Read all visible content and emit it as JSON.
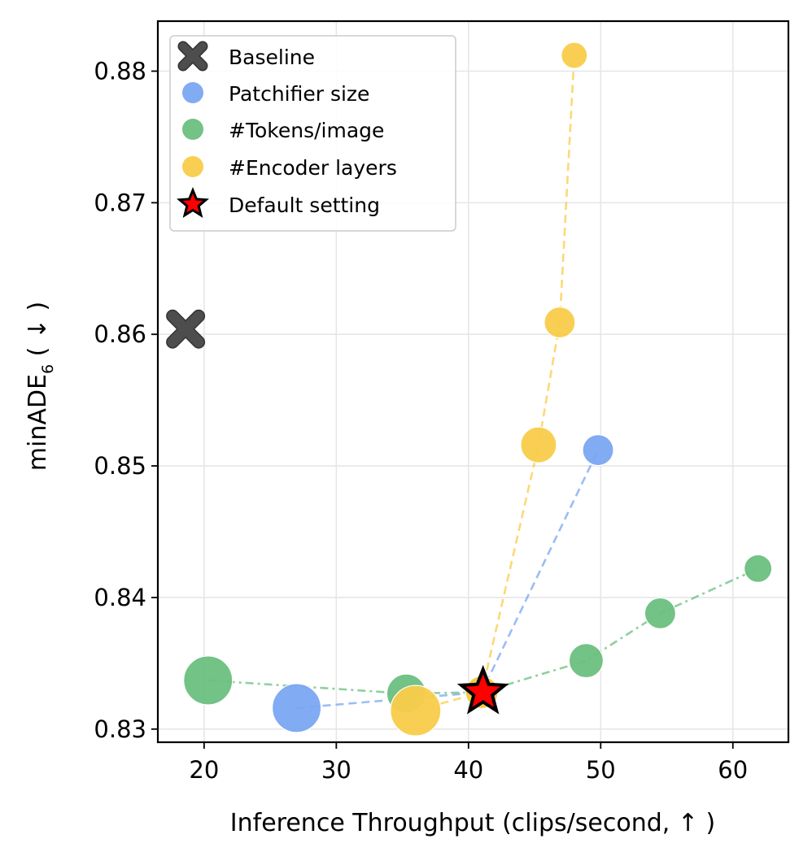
{
  "chart_data": {
    "type": "scatter",
    "xlabel": "Inference Throughput (clips/second, ↑ )",
    "ylabel": {
      "base": "minADE",
      "subscript": "6",
      "suffix": " ( ↓ )"
    },
    "xlim": [
      16.5,
      64.2
    ],
    "ylim": [
      0.829,
      0.8838
    ],
    "xticks": [
      20,
      30,
      40,
      50,
      60
    ],
    "xtick_labels": [
      "20",
      "30",
      "40",
      "50",
      "60"
    ],
    "yticks": [
      0.83,
      0.84,
      0.85,
      0.86,
      0.87,
      0.88
    ],
    "ytick_labels": [
      "0.83",
      "0.84",
      "0.85",
      "0.86",
      "0.87",
      "0.88"
    ],
    "grid": true,
    "legend_position": "top-left",
    "series": [
      {
        "name": "Baseline",
        "marker": "x",
        "color": "#4d4d4d",
        "connect": false,
        "points": [
          {
            "x": 18.6,
            "y": 0.8604
          }
        ]
      },
      {
        "name": "Patchifier size",
        "marker": "circle",
        "color": "#7aa7f2",
        "connect": true,
        "dash": "dashed",
        "points": [
          {
            "x": 27.0,
            "y": 0.8316,
            "size": 30
          },
          {
            "x": 41.0,
            "y": 0.8328,
            "size": 20
          },
          {
            "x": 49.8,
            "y": 0.8512,
            "size": 19
          }
        ]
      },
      {
        "name": "#Tokens/image",
        "marker": "circle",
        "color": "#6bbf7f",
        "connect": true,
        "dash": "dashdot",
        "points": [
          {
            "x": 20.3,
            "y": 0.8337,
            "size": 30
          },
          {
            "x": 35.3,
            "y": 0.8327,
            "size": 24
          },
          {
            "x": 41.0,
            "y": 0.8328,
            "size": 20
          },
          {
            "x": 48.9,
            "y": 0.8352,
            "size": 21
          },
          {
            "x": 54.5,
            "y": 0.8388,
            "size": 19
          },
          {
            "x": 61.9,
            "y": 0.8422,
            "size": 17
          }
        ]
      },
      {
        "name": "#Encoder layers",
        "marker": "circle",
        "color": "#f9cc4a",
        "connect": true,
        "dash": "dashed",
        "points": [
          {
            "x": 36.0,
            "y": 0.8314,
            "size": 31
          },
          {
            "x": 41.0,
            "y": 0.8328,
            "size": 20
          },
          {
            "x": 45.3,
            "y": 0.8516,
            "size": 22
          },
          {
            "x": 46.9,
            "y": 0.8609,
            "size": 19
          },
          {
            "x": 48.0,
            "y": 0.8812,
            "size": 16
          }
        ]
      },
      {
        "name": "Default setting",
        "marker": "star",
        "color": "#ff0000",
        "edgecolor": "#000000",
        "connect": false,
        "points": [
          {
            "x": 41.1,
            "y": 0.8328
          }
        ]
      }
    ]
  }
}
